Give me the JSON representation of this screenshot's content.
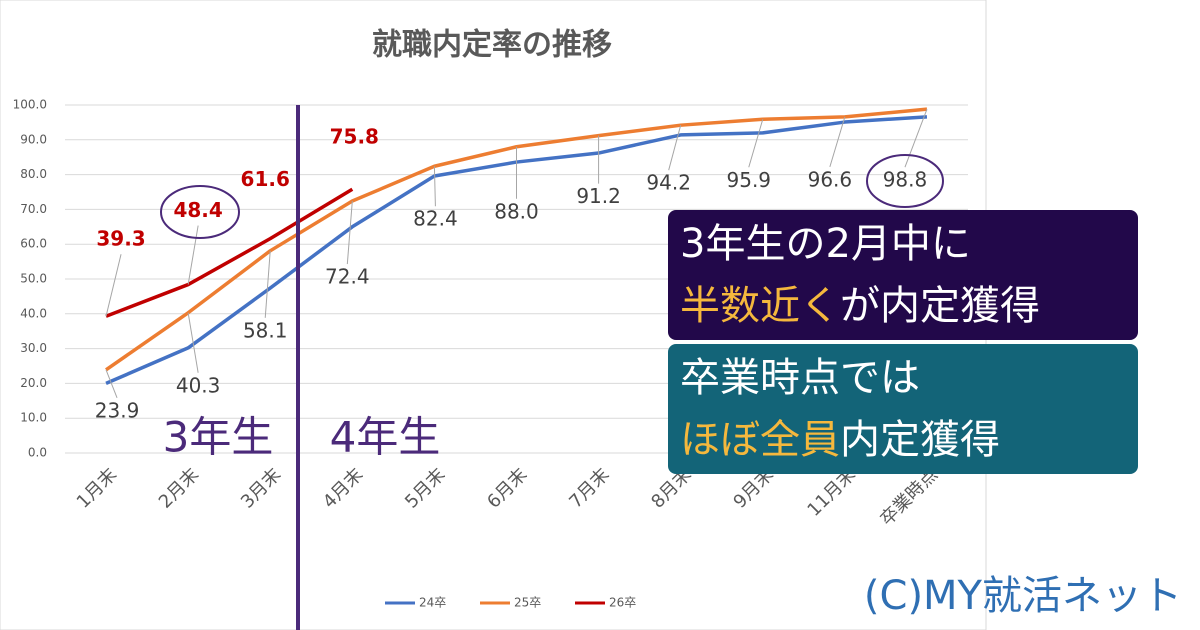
{
  "chart_data": {
    "type": "line",
    "title": "就職内定率の推移",
    "categories": [
      "1月末",
      "2月末",
      "3月末",
      "4月末",
      "5月末",
      "6月末",
      "7月末",
      "8月末",
      "9月末",
      "11月末",
      "卒業時点"
    ],
    "series": [
      {
        "name": "24卒",
        "color": "#4472c4",
        "values": [
          20.0,
          30.2,
          47.4,
          65.0,
          79.6,
          83.6,
          86.2,
          91.4,
          92.0,
          95.1,
          96.6
        ]
      },
      {
        "name": "25卒",
        "color": "#ed7d31",
        "values": [
          23.9,
          40.3,
          58.1,
          72.4,
          82.4,
          88.0,
          91.2,
          94.2,
          95.9,
          96.6,
          98.8
        ],
        "value_labels": [
          "23.9",
          "40.3",
          "58.1",
          "72.4",
          "82.4",
          "88.0",
          "91.2",
          "94.2",
          "95.9",
          "96.6",
          "98.8"
        ]
      },
      {
        "name": "26卒",
        "color": "#c00000",
        "values": [
          39.3,
          48.4,
          61.6,
          75.8,
          null,
          null,
          null,
          null,
          null,
          null,
          null
        ]
      }
    ],
    "ylim": [
      0,
      100
    ],
    "yticks": [
      {
        "value": 0,
        "label": "0.0"
      },
      {
        "value": 10,
        "label": "10.0"
      },
      {
        "value": 20,
        "label": "20.0"
      },
      {
        "value": 30,
        "label": "30.0"
      },
      {
        "value": 40,
        "label": "40.0"
      },
      {
        "value": 50,
        "label": "50.0"
      },
      {
        "value": 60,
        "label": "60.0"
      },
      {
        "value": 70,
        "label": "70.0"
      },
      {
        "value": 80,
        "label": "80.0"
      },
      {
        "value": 90,
        "label": "90.0"
      },
      {
        "value": 100,
        "label": "100.0"
      }
    ],
    "grid": true,
    "legend": "bottom",
    "phases": [
      "3年生",
      "4年生"
    ],
    "boxes": [
      {
        "line1": "3年生の2月中に",
        "highlight": "半数近く",
        "rest": "が内定獲得",
        "color": "#22084a"
      },
      {
        "line1": "卒業時点では",
        "highlight": "ほぼ全員",
        "rest": "内定獲得",
        "color": "#136478"
      }
    ],
    "credit": "(C)MY就活ネット"
  }
}
